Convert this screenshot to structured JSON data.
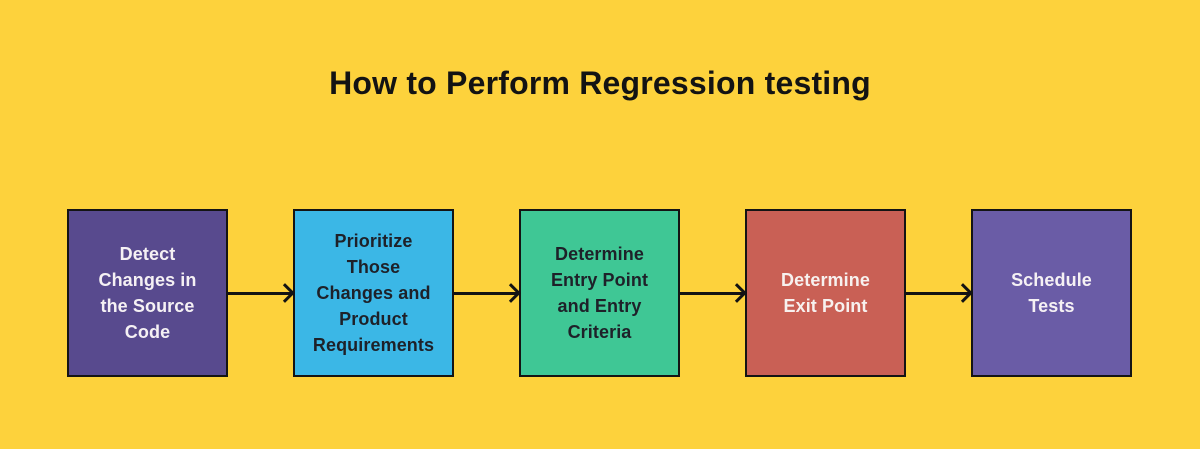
{
  "title": "How to Perform Regression testing",
  "colors": {
    "background": "#FDD23C",
    "title_text": "#131313",
    "box_border": "#141414",
    "arrow": "#131313"
  },
  "flow": {
    "steps": [
      {
        "label": "Detect\nChanges in\nthe Source\nCode",
        "bg": "#584A8E",
        "text_color": "#F5F1F4"
      },
      {
        "label": "Prioritize\nThose\nChanges and\nProduct\nRequirements",
        "bg": "#3BB7E6",
        "text_color": "#1E2129"
      },
      {
        "label": "Determine\nEntry Point\nand Entry\nCriteria",
        "bg": "#3FC795",
        "text_color": "#1E2129"
      },
      {
        "label": "Determine\nExit Point",
        "bg": "#C96055",
        "text_color": "#F7F1EF"
      },
      {
        "label": "Schedule\nTests",
        "bg": "#6A5CA6",
        "text_color": "#F5F1F4"
      }
    ]
  }
}
